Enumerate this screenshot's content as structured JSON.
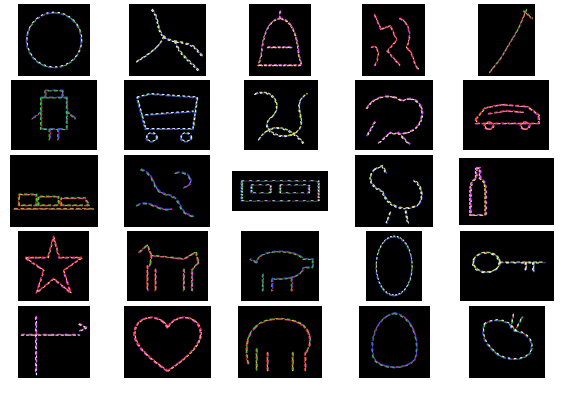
{
  "palette": {
    "background": "#ffffff",
    "tile_background": "#000000",
    "edge_colors": [
      "#ff2020",
      "#20e020",
      "#3050ff",
      "#ffffff",
      "#ffe040",
      "#ff40ff"
    ]
  },
  "tiles": [
    {
      "name": "tile-circle",
      "shape": "circle"
    },
    {
      "name": "tile-lizard",
      "shape": "lizard"
    },
    {
      "name": "tile-bell",
      "shape": "bell"
    },
    {
      "name": "tile-cat-scene",
      "shape": "cat-scene"
    },
    {
      "name": "tile-diagonal",
      "shape": "diagonal"
    },
    {
      "name": "tile-robot",
      "shape": "robot"
    },
    {
      "name": "tile-cart",
      "shape": "cart"
    },
    {
      "name": "tile-tangle",
      "shape": "tangle"
    },
    {
      "name": "tile-frog",
      "shape": "frog"
    },
    {
      "name": "tile-car",
      "shape": "car"
    },
    {
      "name": "tile-train",
      "shape": "train"
    },
    {
      "name": "tile-squiggle",
      "shape": "squiggle"
    },
    {
      "name": "tile-bus",
      "shape": "bus"
    },
    {
      "name": "tile-hen",
      "shape": "hen"
    },
    {
      "name": "tile-bottle",
      "shape": "bottle"
    },
    {
      "name": "tile-star",
      "shape": "star"
    },
    {
      "name": "tile-dog",
      "shape": "dog"
    },
    {
      "name": "tile-pig",
      "shape": "pig"
    },
    {
      "name": "tile-oval",
      "shape": "oval"
    },
    {
      "name": "tile-key",
      "shape": "key"
    },
    {
      "name": "tile-cross",
      "shape": "cross"
    },
    {
      "name": "tile-heart",
      "shape": "heart"
    },
    {
      "name": "tile-elephant",
      "shape": "elephant"
    },
    {
      "name": "tile-egg",
      "shape": "egg"
    },
    {
      "name": "tile-rabbit",
      "shape": "rabbit"
    }
  ]
}
